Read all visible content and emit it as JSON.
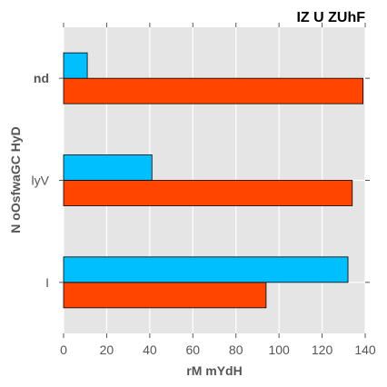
{
  "chart_data": {
    "type": "bar",
    "orientation": "horizontal",
    "title": "IZ U ZUhF",
    "xlabel": "rM  mYdH",
    "ylabel": "N oOsfwaGC HyD",
    "categories": [
      "I",
      "lyV",
      "nd"
    ],
    "category_label_bold": [
      false,
      false,
      true
    ],
    "xlim": [
      0,
      140
    ],
    "xticks": [
      0,
      20,
      40,
      60,
      80,
      100,
      120,
      140
    ],
    "grid": true,
    "series": [
      {
        "values": [
          94,
          134,
          139
        ],
        "color": "#FF4500"
      },
      {
        "values": [
          132,
          41,
          11
        ],
        "color": "#00BFFF"
      }
    ]
  }
}
